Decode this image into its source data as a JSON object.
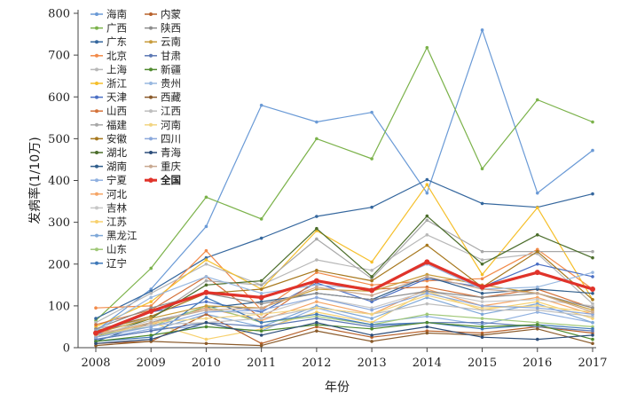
{
  "chart_data": {
    "type": "line",
    "xlabel": "年份",
    "ylabel": "发病率(1/10万)",
    "x": [
      "2008",
      "2009",
      "2010",
      "2011",
      "2012",
      "2013",
      "2014",
      "2015",
      "2016",
      "2017"
    ],
    "ylim": [
      0,
      800
    ],
    "yticks": [
      0,
      100,
      200,
      300,
      400,
      500,
      600,
      700,
      800
    ],
    "grid": false,
    "legend_position": "top-left",
    "series": [
      {
        "name": "海南",
        "color": "#6a9ad6",
        "values": [
          40,
          140,
          290,
          580,
          540,
          563,
          370,
          760,
          370,
          472
        ]
      },
      {
        "name": "广西",
        "color": "#7bb24a",
        "values": [
          65,
          190,
          360,
          308,
          500,
          452,
          718,
          428,
          593,
          540
        ]
      },
      {
        "name": "广东",
        "color": "#35679e",
        "values": [
          70,
          135,
          215,
          262,
          314,
          336,
          402,
          345,
          336,
          368
        ]
      },
      {
        "name": "北京",
        "color": "#f28a49",
        "values": [
          95,
          100,
          232,
          90,
          180,
          150,
          160,
          165,
          235,
          140
        ]
      },
      {
        "name": "上海",
        "color": "#b8b8b8",
        "values": [
          60,
          130,
          200,
          150,
          210,
          185,
          270,
          210,
          225,
          105
        ]
      },
      {
        "name": "浙江",
        "color": "#f5bf2a",
        "values": [
          50,
          110,
          210,
          140,
          280,
          205,
          390,
          175,
          335,
          115
        ]
      },
      {
        "name": "天津",
        "color": "#4a6fc4",
        "values": [
          30,
          85,
          110,
          85,
          155,
          110,
          165,
          145,
          200,
          170
        ]
      },
      {
        "name": "山西",
        "color": "#d4723a",
        "values": [
          55,
          90,
          170,
          70,
          160,
          140,
          145,
          120,
          140,
          95
        ]
      },
      {
        "name": "福建",
        "color": "#a8a8a8",
        "values": [
          45,
          70,
          160,
          150,
          260,
          165,
          305,
          230,
          230,
          230
        ]
      },
      {
        "name": "安徽",
        "color": "#a7781e",
        "values": [
          40,
          75,
          130,
          140,
          185,
          160,
          245,
          145,
          230,
          115
        ]
      },
      {
        "name": "湖北",
        "color": "#4b6d2b",
        "values": [
          25,
          70,
          150,
          160,
          285,
          170,
          315,
          200,
          270,
          215
        ]
      },
      {
        "name": "湖南",
        "color": "#2f5d8b",
        "values": [
          15,
          60,
          95,
          110,
          130,
          115,
          170,
          130,
          140,
          130
        ]
      },
      {
        "name": "宁夏",
        "color": "#8fb0e0",
        "values": [
          20,
          45,
          50,
          40,
          95,
          60,
          75,
          55,
          85,
          60
        ]
      },
      {
        "name": "河北",
        "color": "#f5a566",
        "values": [
          35,
          55,
          95,
          65,
          110,
          80,
          140,
          100,
          120,
          80
        ]
      },
      {
        "name": "吉林",
        "color": "#c7c7c7",
        "values": [
          30,
          65,
          90,
          80,
          120,
          95,
          135,
          110,
          115,
          100
        ]
      },
      {
        "name": "江苏",
        "color": "#f7d16e",
        "values": [
          25,
          60,
          20,
          45,
          85,
          60,
          135,
          90,
          110,
          70
        ]
      },
      {
        "name": "黑龙江",
        "color": "#7fa8d8",
        "values": [
          20,
          40,
          80,
          50,
          100,
          70,
          120,
          80,
          105,
          60
        ]
      },
      {
        "name": "山东",
        "color": "#a0c878",
        "values": [
          30,
          50,
          100,
          60,
          75,
          55,
          80,
          70,
          60,
          50
        ]
      },
      {
        "name": "辽宁",
        "color": "#3e78b8",
        "values": [
          15,
          25,
          120,
          60,
          80,
          55,
          60,
          45,
          55,
          45
        ]
      },
      {
        "name": "内蒙",
        "color": "#b8622c",
        "values": [
          10,
          15,
          80,
          10,
          50,
          25,
          40,
          35,
          50,
          35
        ]
      },
      {
        "name": "陕西",
        "color": "#8c8c8c",
        "values": [
          45,
          95,
          130,
          105,
          130,
          115,
          135,
          120,
          130,
          95
        ]
      },
      {
        "name": "云南",
        "color": "#c89c3c",
        "values": [
          35,
          70,
          100,
          95,
          140,
          135,
          175,
          150,
          130,
          90
        ]
      },
      {
        "name": "甘肃",
        "color": "#5c78b4",
        "values": [
          20,
          40,
          60,
          50,
          70,
          50,
          60,
          60,
          50,
          40
        ]
      },
      {
        "name": "新疆",
        "color": "#4f8a2e",
        "values": [
          15,
          30,
          50,
          40,
          55,
          45,
          60,
          50,
          55,
          20
        ]
      },
      {
        "name": "贵州",
        "color": "#98b8e0",
        "values": [
          40,
          120,
          170,
          130,
          150,
          140,
          200,
          140,
          145,
          180
        ]
      },
      {
        "name": "西藏",
        "color": "#8a5a2a",
        "values": [
          5,
          15,
          10,
          5,
          40,
          15,
          35,
          30,
          45,
          10
        ]
      },
      {
        "name": "江西",
        "color": "#bebebe",
        "values": [
          25,
          55,
          60,
          70,
          95,
          80,
          105,
          90,
          90,
          75
        ]
      },
      {
        "name": "河南",
        "color": "#f2d480",
        "values": [
          30,
          60,
          70,
          80,
          95,
          80,
          125,
          95,
          100,
          85
        ]
      },
      {
        "name": "四川",
        "color": "#8aa8dc",
        "values": [
          25,
          50,
          85,
          90,
          120,
          90,
          130,
          100,
          95,
          80
        ]
      },
      {
        "name": "青海",
        "color": "#2d4e7a",
        "values": [
          10,
          20,
          60,
          30,
          60,
          30,
          50,
          25,
          20,
          30
        ]
      },
      {
        "name": "重庆",
        "color": "#c8a890",
        "values": [
          30,
          60,
          90,
          95,
          145,
          125,
          170,
          140,
          130,
          85
        ]
      },
      {
        "name": "全国",
        "color": "#e0332a",
        "values": [
          35,
          87,
          132,
          120,
          160,
          137,
          205,
          145,
          180,
          140
        ]
      }
    ]
  }
}
